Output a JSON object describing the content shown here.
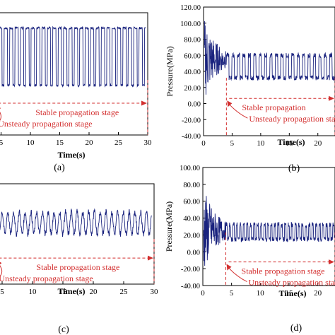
{
  "chart_data": [
    {
      "panel": "(a)",
      "type": "line",
      "xlabel": "Time(s)",
      "ylabel": "",
      "xlim": [
        0,
        30
      ],
      "ylim": [
        -40,
        120
      ],
      "x_ticks": [
        "5",
        "10",
        "15",
        "20",
        "25",
        "30"
      ],
      "y_ticks": [],
      "series": [
        {
          "color": "#1a237e",
          "signal": {
            "kind": "pulse",
            "start": 0,
            "end": 29.6,
            "period": 0.92,
            "low": 25,
            "high": 100,
            "noise": 3
          }
        }
      ],
      "annotations": [
        "Stable propagation stage",
        "Unsteady propagation stage"
      ],
      "markers": {
        "stable_start": 4,
        "stable_end": 30
      }
    },
    {
      "panel": "(b)",
      "type": "line",
      "xlabel": "Time(s)",
      "ylabel": "Pressure(MPa)",
      "xlim": [
        0,
        23
      ],
      "ylim": [
        -40,
        120
      ],
      "x_ticks": [
        "0",
        "5",
        "10",
        "15",
        "20"
      ],
      "y_ticks": [
        "120.00",
        "100.00",
        "80.00",
        "60.00",
        "40.00",
        "20.00",
        "0.00",
        "-20.00",
        "-40.00"
      ],
      "series": [
        {
          "color": "#1a237e",
          "signal": {
            "kind": "decay",
            "burst_end": 4,
            "burst_center": 55,
            "burst_amp": 55,
            "steady_low": 32,
            "steady_high": 60,
            "period": 0.95
          }
        }
      ],
      "annotations": [
        "Stable propagation",
        "Unsteady propagation stage"
      ],
      "markers": {
        "stable_start": 4,
        "stable_end": 23
      }
    },
    {
      "panel": "(c)",
      "type": "line",
      "xlabel": "Time(s)",
      "ylabel": "",
      "xlim": [
        0,
        30
      ],
      "ylim": [
        -40,
        120
      ],
      "x_ticks": [
        "5",
        "10",
        "15",
        "20",
        "25",
        "30"
      ],
      "y_ticks": [],
      "series": [
        {
          "color": "#1a237e",
          "signal": {
            "kind": "ripple",
            "start": 0,
            "end": 29.6,
            "period": 0.95,
            "low": 40,
            "high": 75,
            "noise": 5
          }
        }
      ],
      "annotations": [
        "Stable propagation stage",
        "Unsteady propagation stage"
      ],
      "markers": {
        "stable_start": 4,
        "stable_end": 30
      }
    },
    {
      "panel": "(d)",
      "type": "line",
      "xlabel": "Time(s)",
      "ylabel": "Pressure(MPa)",
      "xlim": [
        0,
        23
      ],
      "ylim": [
        -40,
        100
      ],
      "x_ticks": [
        "0",
        "5",
        "10",
        "15",
        "20"
      ],
      "y_ticks": [
        "100.00",
        "80.00",
        "60.00",
        "40.00",
        "20.00",
        "0.00",
        "-20.00",
        "-40.00"
      ],
      "series": [
        {
          "color": "#1a237e",
          "signal": {
            "kind": "decay",
            "burst_end": 4,
            "burst_center": 25,
            "burst_amp": 55,
            "steady_low": 15,
            "steady_high": 32,
            "period": 0.6
          }
        }
      ],
      "annotations": [
        "Stable propagation stage",
        "Unsteady propagation stage"
      ],
      "markers": {
        "stable_start": 4,
        "stable_end": 23
      }
    }
  ]
}
